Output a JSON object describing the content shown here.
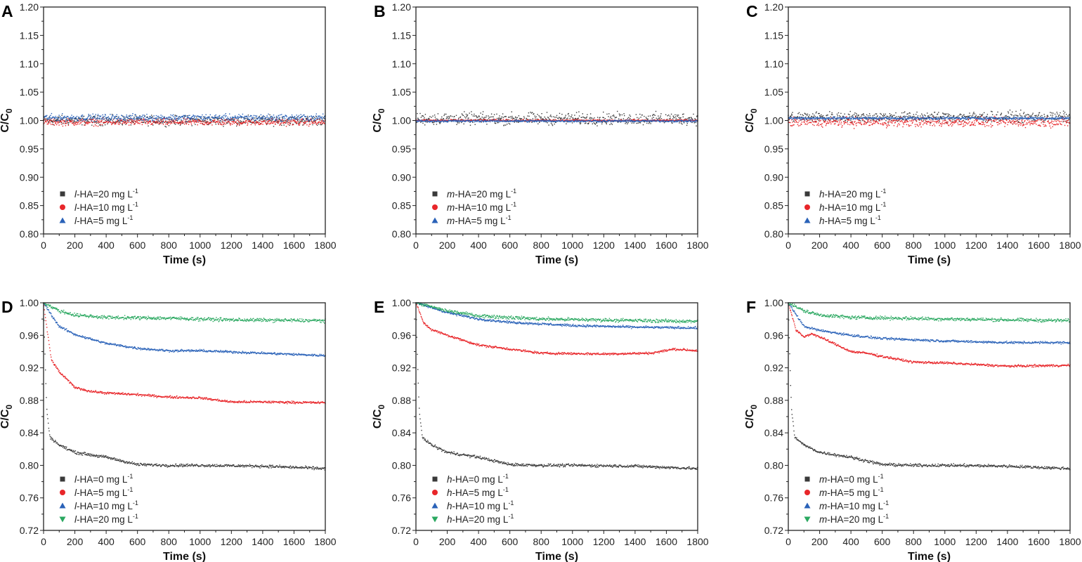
{
  "colors": {
    "black": "#3a3a3a",
    "red": "#e8262a",
    "blue": "#2a62b8",
    "green": "#2aa860"
  },
  "chart_data": [
    {
      "panel": "A",
      "type": "scatter",
      "xlabel": "Time (s)",
      "ylabel_main": "C/C",
      "ylabel_sub": "0",
      "xlim": [
        0,
        1800
      ],
      "ylim": [
        0.8,
        1.2
      ],
      "xticks": [
        "0",
        "200",
        "400",
        "600",
        "800",
        "1000",
        "1200",
        "1400",
        "1600",
        "1800"
      ],
      "yticks": [
        "0.80",
        "0.85",
        "0.90",
        "0.95",
        "1.00",
        "1.05",
        "1.10",
        "1.15",
        "1.20"
      ],
      "legend_position": "bottom-left",
      "series": [
        {
          "prefix": "l",
          "text": "-HA=20 mg L",
          "sup": "-1",
          "color": "black",
          "marker": "square",
          "points": [
            [
              0,
              1.0
            ],
            [
              1800,
              1.0
            ]
          ],
          "spread": 0.007
        },
        {
          "prefix": "l",
          "text": "-HA=10 mg L",
          "sup": "-1",
          "color": "red",
          "marker": "circle",
          "points": [
            [
              0,
              0.997
            ],
            [
              1800,
              0.997
            ]
          ],
          "spread": 0.005
        },
        {
          "prefix": "l",
          "text": "-HA=5 mg L",
          "sup": "-1",
          "color": "blue",
          "marker": "triangle-up",
          "points": [
            [
              0,
              1.005
            ],
            [
              1800,
              1.005
            ]
          ],
          "spread": 0.005
        }
      ]
    },
    {
      "panel": "B",
      "type": "scatter",
      "xlabel": "Time (s)",
      "ylabel_main": "C/C",
      "ylabel_sub": "0",
      "xlim": [
        0,
        1800
      ],
      "ylim": [
        0.8,
        1.2
      ],
      "xticks": [
        "0",
        "200",
        "400",
        "600",
        "800",
        "1000",
        "1200",
        "1400",
        "1600",
        "1800"
      ],
      "yticks": [
        "0.80",
        "0.85",
        "0.90",
        "0.95",
        "1.00",
        "1.05",
        "1.10",
        "1.15",
        "1.20"
      ],
      "legend_position": "bottom-left",
      "series": [
        {
          "prefix": "m",
          "text": "-HA=20 mg L",
          "sup": "-1",
          "color": "black",
          "marker": "square",
          "points": [
            [
              0,
              1.003
            ],
            [
              1800,
              1.003
            ]
          ],
          "spread": 0.009
        },
        {
          "prefix": "m",
          "text": "-HA=10 mg L",
          "sup": "-1",
          "color": "red",
          "marker": "circle",
          "points": [
            [
              0,
              1.0
            ],
            [
              1800,
              1.0
            ]
          ],
          "spread": 0.0015
        },
        {
          "prefix": "m",
          "text": "-HA=5 mg L",
          "sup": "-1",
          "color": "blue",
          "marker": "triangle-up",
          "points": [
            [
              0,
              0.999
            ],
            [
              1800,
              0.999
            ]
          ],
          "spread": 0.0015
        }
      ]
    },
    {
      "panel": "C",
      "type": "scatter",
      "xlabel": "Time (s)",
      "ylabel_main": "C/C",
      "ylabel_sub": "0",
      "xlim": [
        0,
        1800
      ],
      "ylim": [
        0.8,
        1.2
      ],
      "xticks": [
        "0",
        "200",
        "400",
        "600",
        "800",
        "1000",
        "1200",
        "1400",
        "1600",
        "1800"
      ],
      "yticks": [
        "0.80",
        "0.85",
        "0.90",
        "0.95",
        "1.00",
        "1.05",
        "1.10",
        "1.15",
        "1.20"
      ],
      "legend_position": "bottom-left",
      "series": [
        {
          "prefix": "h",
          "text": "-HA=20 mg L",
          "sup": "-1",
          "color": "black",
          "marker": "square",
          "points": [
            [
              0,
              1.006
            ],
            [
              1800,
              1.006
            ]
          ],
          "spread": 0.008
        },
        {
          "prefix": "h",
          "text": "-HA=10 mg L",
          "sup": "-1",
          "color": "red",
          "marker": "circle",
          "points": [
            [
              0,
              0.997
            ],
            [
              1800,
              0.997
            ]
          ],
          "spread": 0.007
        },
        {
          "prefix": "h",
          "text": "-HA=5 mg L",
          "sup": "-1",
          "color": "blue",
          "marker": "triangle-up",
          "points": [
            [
              0,
              1.004
            ],
            [
              1800,
              1.004
            ]
          ],
          "spread": 0.002
        }
      ]
    },
    {
      "panel": "D",
      "type": "scatter",
      "xlabel": "Time (s)",
      "ylabel_main": "C/C",
      "ylabel_sub": "0",
      "xlim": [
        0,
        1800
      ],
      "ylim": [
        0.72,
        1.0
      ],
      "xticks": [
        "0",
        "200",
        "400",
        "600",
        "800",
        "1000",
        "1200",
        "1400",
        "1600",
        "1800"
      ],
      "yticks": [
        "0.72",
        "0.76",
        "0.80",
        "0.84",
        "0.88",
        "0.92",
        "0.96",
        "1.00"
      ],
      "legend_position": "bottom-left",
      "series": [
        {
          "prefix": "l",
          "text": "-HA=0 mg L",
          "sup": "-1",
          "color": "black",
          "marker": "square",
          "points": [
            [
              0,
              1.0
            ],
            [
              10,
              0.93
            ],
            [
              20,
              0.87
            ],
            [
              40,
              0.835
            ],
            [
              100,
              0.825
            ],
            [
              200,
              0.816
            ],
            [
              400,
              0.81
            ],
            [
              600,
              0.801
            ],
            [
              800,
              0.8
            ],
            [
              1000,
              0.8
            ],
            [
              1400,
              0.799
            ],
            [
              1800,
              0.796
            ]
          ],
          "spread": 0.0015
        },
        {
          "prefix": "l",
          "text": "-HA=5 mg L",
          "sup": "-1",
          "color": "red",
          "marker": "circle",
          "points": [
            [
              0,
              1.0
            ],
            [
              20,
              0.97
            ],
            [
              50,
              0.93
            ],
            [
              100,
              0.915
            ],
            [
              200,
              0.896
            ],
            [
              300,
              0.891
            ],
            [
              400,
              0.889
            ],
            [
              600,
              0.887
            ],
            [
              800,
              0.884
            ],
            [
              1000,
              0.883
            ],
            [
              1200,
              0.878
            ],
            [
              1400,
              0.878
            ],
            [
              1800,
              0.877
            ]
          ],
          "spread": 0.0012
        },
        {
          "prefix": "l",
          "text": "-HA=10 mg L",
          "sup": "-1",
          "color": "blue",
          "marker": "triangle-up",
          "points": [
            [
              0,
              1.0
            ],
            [
              50,
              0.985
            ],
            [
              100,
              0.971
            ],
            [
              200,
              0.961
            ],
            [
              400,
              0.95
            ],
            [
              600,
              0.944
            ],
            [
              800,
              0.941
            ],
            [
              1000,
              0.941
            ],
            [
              1400,
              0.938
            ],
            [
              1800,
              0.935
            ]
          ],
          "spread": 0.0012
        },
        {
          "prefix": "l",
          "text": "-HA=20 mg L",
          "sup": "-1",
          "color": "green",
          "marker": "triangle-down",
          "points": [
            [
              0,
              1.0
            ],
            [
              100,
              0.99
            ],
            [
              200,
              0.985
            ],
            [
              400,
              0.982
            ],
            [
              800,
              0.981
            ],
            [
              1200,
              0.979
            ],
            [
              1800,
              0.978
            ]
          ],
          "spread": 0.0018
        }
      ]
    },
    {
      "panel": "E",
      "type": "scatter",
      "xlabel": "Time (s)",
      "ylabel_main": "C/C",
      "ylabel_sub": "0",
      "xlim": [
        0,
        1800
      ],
      "ylim": [
        0.72,
        1.0
      ],
      "xticks": [
        "0",
        "200",
        "400",
        "600",
        "800",
        "1000",
        "1200",
        "1400",
        "1600",
        "1800"
      ],
      "yticks": [
        "0.72",
        "0.76",
        "0.80",
        "0.84",
        "0.88",
        "0.92",
        "0.96",
        "1.00"
      ],
      "legend_position": "bottom-left",
      "series": [
        {
          "prefix": "h",
          "text": "-HA=0 mg L",
          "sup": "-1",
          "color": "black",
          "marker": "square",
          "points": [
            [
              0,
              1.0
            ],
            [
              10,
              0.93
            ],
            [
              20,
              0.87
            ],
            [
              40,
              0.835
            ],
            [
              100,
              0.825
            ],
            [
              200,
              0.816
            ],
            [
              400,
              0.81
            ],
            [
              600,
              0.801
            ],
            [
              800,
              0.8
            ],
            [
              1000,
              0.8
            ],
            [
              1400,
              0.799
            ],
            [
              1800,
              0.796
            ]
          ],
          "spread": 0.0015
        },
        {
          "prefix": "h",
          "text": "-HA=5 mg L",
          "sup": "-1",
          "color": "red",
          "marker": "circle",
          "points": [
            [
              0,
              1.0
            ],
            [
              50,
              0.975
            ],
            [
              100,
              0.967
            ],
            [
              200,
              0.96
            ],
            [
              400,
              0.948
            ],
            [
              600,
              0.943
            ],
            [
              800,
              0.938
            ],
            [
              1200,
              0.937
            ],
            [
              1500,
              0.938
            ],
            [
              1650,
              0.943
            ],
            [
              1800,
              0.941
            ]
          ],
          "spread": 0.0012
        },
        {
          "prefix": "h",
          "text": "-HA=10 mg L",
          "sup": "-1",
          "color": "blue",
          "marker": "triangle-up",
          "points": [
            [
              0,
              1.0
            ],
            [
              200,
              0.988
            ],
            [
              400,
              0.98
            ],
            [
              600,
              0.976
            ],
            [
              1000,
              0.972
            ],
            [
              1400,
              0.97
            ],
            [
              1800,
              0.969
            ]
          ],
          "spread": 0.0012
        },
        {
          "prefix": "h",
          "text": "-HA=20 mg L",
          "sup": "-1",
          "color": "green",
          "marker": "triangle-down",
          "points": [
            [
              0,
              1.0
            ],
            [
              200,
              0.99
            ],
            [
              400,
              0.984
            ],
            [
              800,
              0.98
            ],
            [
              1800,
              0.977
            ]
          ],
          "spread": 0.0018
        }
      ]
    },
    {
      "panel": "F",
      "type": "scatter",
      "xlabel": "Time (s)",
      "ylabel_main": "C/C",
      "ylabel_sub": "0",
      "xlim": [
        0,
        1800
      ],
      "ylim": [
        0.72,
        1.0
      ],
      "xticks": [
        "0",
        "200",
        "400",
        "600",
        "800",
        "1000",
        "1200",
        "1400",
        "1600",
        "1800"
      ],
      "yticks": [
        "0.72",
        "0.76",
        "0.80",
        "0.84",
        "0.88",
        "0.92",
        "0.96",
        "1.00"
      ],
      "legend_position": "bottom-left",
      "series": [
        {
          "prefix": "m",
          "text": "-HA=0 mg L",
          "sup": "-1",
          "color": "black",
          "marker": "square",
          "points": [
            [
              0,
              1.0
            ],
            [
              10,
              0.93
            ],
            [
              20,
              0.87
            ],
            [
              40,
              0.835
            ],
            [
              100,
              0.825
            ],
            [
              200,
              0.816
            ],
            [
              400,
              0.81
            ],
            [
              600,
              0.801
            ],
            [
              800,
              0.8
            ],
            [
              1000,
              0.8
            ],
            [
              1400,
              0.799
            ],
            [
              1800,
              0.796
            ]
          ],
          "spread": 0.0015
        },
        {
          "prefix": "m",
          "text": "-HA=5 mg L",
          "sup": "-1",
          "color": "red",
          "marker": "circle",
          "points": [
            [
              0,
              1.0
            ],
            [
              50,
              0.966
            ],
            [
              100,
              0.958
            ],
            [
              150,
              0.962
            ],
            [
              200,
              0.958
            ],
            [
              400,
              0.94
            ],
            [
              500,
              0.938
            ],
            [
              600,
              0.934
            ],
            [
              800,
              0.927
            ],
            [
              1000,
              0.926
            ],
            [
              1400,
              0.922
            ],
            [
              1800,
              0.923
            ]
          ],
          "spread": 0.0012
        },
        {
          "prefix": "m",
          "text": "-HA=10 mg L",
          "sup": "-1",
          "color": "blue",
          "marker": "triangle-up",
          "points": [
            [
              0,
              1.0
            ],
            [
              100,
              0.971
            ],
            [
              200,
              0.966
            ],
            [
              400,
              0.96
            ],
            [
              600,
              0.956
            ],
            [
              1000,
              0.953
            ],
            [
              1400,
              0.951
            ],
            [
              1800,
              0.951
            ]
          ],
          "spread": 0.0012
        },
        {
          "prefix": "m",
          "text": "-HA=20 mg L",
          "sup": "-1",
          "color": "green",
          "marker": "triangle-down",
          "points": [
            [
              0,
              1.0
            ],
            [
              100,
              0.99
            ],
            [
              200,
              0.985
            ],
            [
              400,
              0.982
            ],
            [
              1000,
              0.98
            ],
            [
              1800,
              0.978
            ]
          ],
          "spread": 0.0018
        }
      ]
    }
  ]
}
